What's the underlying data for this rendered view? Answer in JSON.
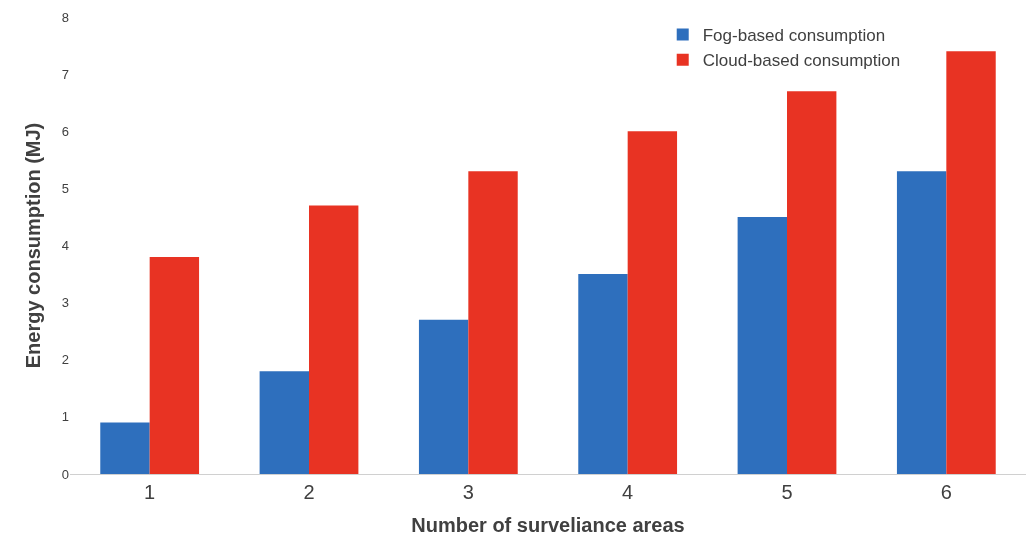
{
  "chart_data": {
    "type": "bar",
    "xlabel": "Number of surveliance areas",
    "ylabel": "Energy consumption (MJ)",
    "categories": [
      "1",
      "2",
      "3",
      "4",
      "5",
      "6"
    ],
    "series": [
      {
        "name": "Fog-based consumption",
        "color": "#2e6fbd",
        "values": [
          0.9,
          1.8,
          2.7,
          3.5,
          4.5,
          5.3
        ]
      },
      {
        "name": "Cloud-based consumption",
        "color": "#e83323",
        "values": [
          3.8,
          4.7,
          5.3,
          6.0,
          6.7,
          7.4
        ]
      }
    ],
    "ylim": [
      0,
      8
    ],
    "yticks": [
      0,
      1,
      2,
      3,
      4,
      5,
      6,
      7,
      8
    ],
    "legend": "top right"
  }
}
